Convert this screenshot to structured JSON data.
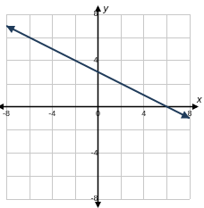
{
  "chart_data": {
    "type": "line",
    "xlabel": "x",
    "ylabel": "y",
    "x": [
      -8,
      8
    ],
    "values": [
      7,
      -1
    ],
    "color": "#1f3b5a",
    "xlim": [
      -8,
      8
    ],
    "ylim": [
      -8,
      8
    ],
    "xticks": [
      -8,
      -4,
      0,
      4,
      8
    ],
    "yticks": [
      -8,
      -4,
      0,
      4,
      8
    ],
    "grid": true
  }
}
